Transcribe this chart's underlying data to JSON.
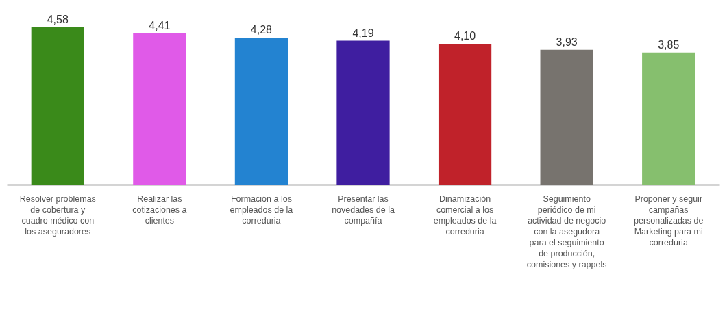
{
  "chart_data": {
    "type": "bar",
    "categories": [
      "Resolver problemas de cobertura y cuadro médico con los aseguradores",
      "Realizar las cotizaciones a clientes",
      "Formación a los empleados de la correduria",
      "Presentar las novedades de la compañía",
      "Dinamización comercial a los empleados de la correduria",
      "Seguimiento periódico de mi actividad de negocio con la asegudora para el seguimiento de producción, comisiones y rappels",
      "Proponer y seguir campañas personalizadas de Marketing para mi correduria"
    ],
    "values": [
      4.58,
      4.41,
      4.28,
      4.19,
      4.1,
      3.93,
      3.85
    ],
    "colors": [
      "#3a8a1a",
      "#e05ae8",
      "#2383d1",
      "#3f1ea0",
      "#c0222a",
      "#77736e",
      "#86bf6e"
    ],
    "value_labels": [
      "4,58",
      "4,41",
      "4,28",
      "4,19",
      "4,10",
      "3,93",
      "3,85"
    ],
    "tick_labels": "x"
  }
}
